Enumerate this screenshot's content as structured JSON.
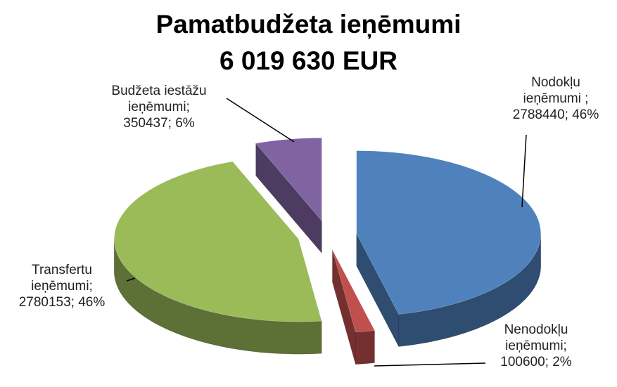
{
  "chart_data": {
    "type": "pie3d",
    "title": "Pamatbudžeta ieņēmumi",
    "subtitle": "6 019 630 EUR",
    "categories": [
      "Nodokļu ieņēmumi ;",
      "Nenodokļu ieņēmumi;",
      "Transfertu ieņēmumi;",
      "Budžeta iestāžu ieņēmumi;"
    ],
    "values": [
      2788440,
      100600,
      2780153,
      350437
    ],
    "value_labels": [
      "2788440; 46%",
      "100600; 2%",
      "2780153; 46%",
      "350437; 6%"
    ],
    "colors": [
      "#4f81bd",
      "#c0504d",
      "#9bbb59",
      "#8064a2"
    ]
  }
}
